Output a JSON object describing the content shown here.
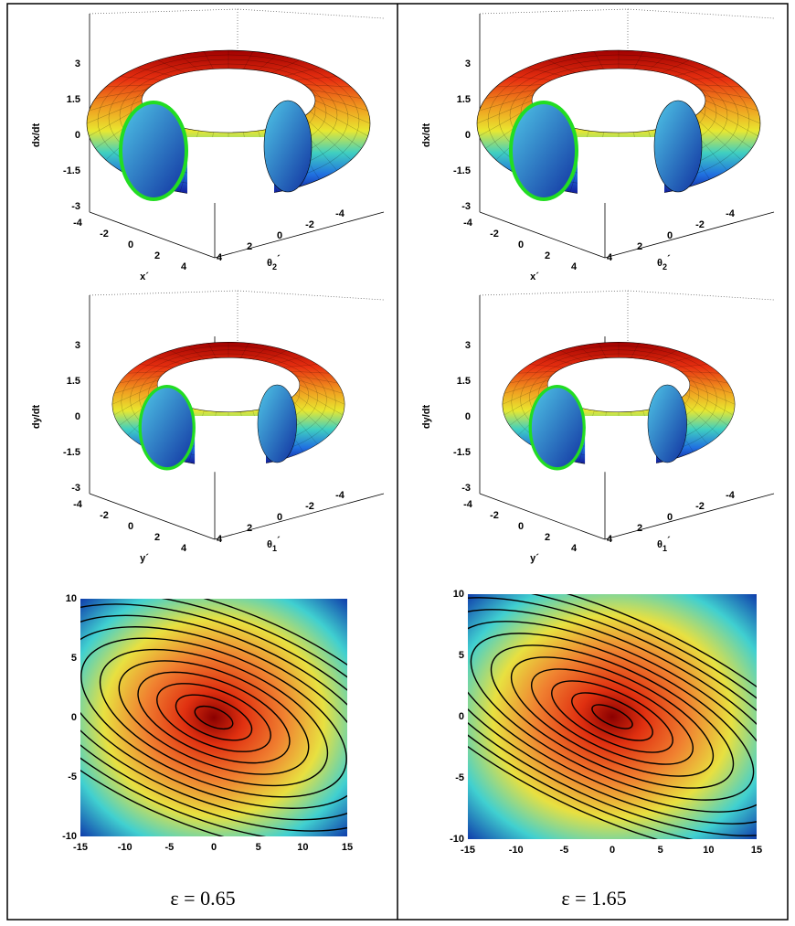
{
  "columns": [
    {
      "caption": "ε = 0.65",
      "panels": [
        {
          "z_label": "dx/dt",
          "x_label": "x´",
          "y_label": [
            "θ",
            "2",
            "´"
          ]
        },
        {
          "z_label": "dy/dt",
          "x_label": "y´",
          "y_label": [
            "θ",
            "1",
            "´"
          ]
        }
      ],
      "contour": {
        "xticks": [
          -15,
          -10,
          -5,
          0,
          5,
          10,
          15
        ],
        "yticks": [
          10,
          5,
          0,
          -5,
          -10
        ]
      }
    },
    {
      "caption": "ε = 1.65",
      "panels": [
        {
          "z_label": "dx/dt",
          "x_label": "x´",
          "y_label": [
            "θ",
            "2",
            "´"
          ]
        },
        {
          "z_label": "dy/dt",
          "x_label": "y´",
          "y_label": [
            "θ",
            "1",
            "´"
          ]
        }
      ],
      "contour": {
        "xticks": [
          -15,
          -10,
          -5,
          0,
          5,
          10,
          15
        ],
        "yticks": [
          10,
          5,
          0,
          -5,
          -10
        ]
      }
    }
  ],
  "surface_axes": {
    "zticks": [
      3,
      1.5,
      0,
      -1.5,
      -3
    ],
    "xticks": [
      -4,
      -2,
      0,
      2,
      4
    ],
    "yticks": [
      4,
      2,
      0,
      -2,
      -4
    ]
  }
}
